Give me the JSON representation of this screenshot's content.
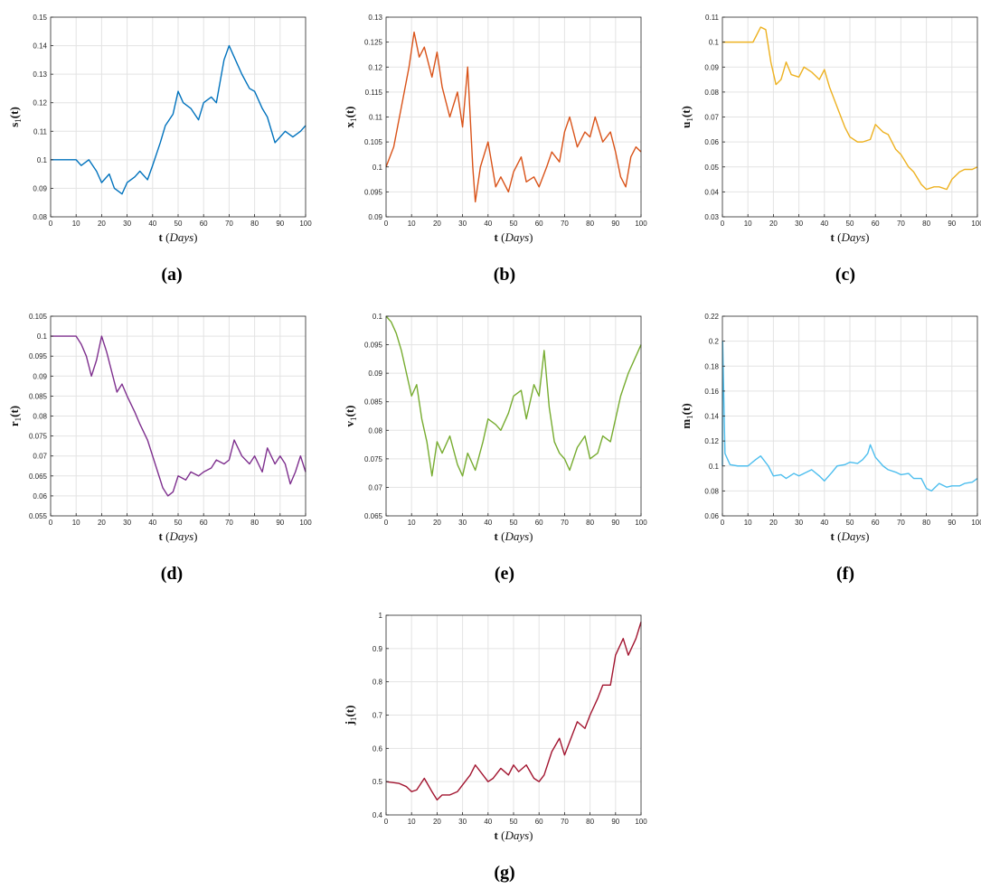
{
  "figure": {
    "charts": [
      {
        "caption": "(a)",
        "ylabel_base": "s",
        "xlabel_main": "t",
        "xlabel_paren": "Days",
        "color": "#0072BD"
      },
      {
        "caption": "(b)",
        "ylabel_base": "x",
        "xlabel_main": "t",
        "xlabel_paren": "Days",
        "color": "#D95319"
      },
      {
        "caption": "(c)",
        "ylabel_base": "u",
        "xlabel_main": "t",
        "xlabel_paren": "Days",
        "color": "#EDB120"
      },
      {
        "caption": "(d)",
        "ylabel_base": "r",
        "xlabel_main": "t",
        "xlabel_paren": "Days",
        "color": "#7E2F8E"
      },
      {
        "caption": "(e)",
        "ylabel_base": "v",
        "xlabel_main": "t",
        "xlabel_paren": "Days",
        "color": "#77AC30"
      },
      {
        "caption": "(f)",
        "ylabel_base": "m",
        "xlabel_main": "t",
        "xlabel_paren": "Days",
        "color": "#4DBEEE"
      },
      {
        "caption": "(g)",
        "ylabel_base": "j",
        "xlabel_main": "t",
        "xlabel_paren": "Days",
        "color": "#A2142F"
      }
    ]
  },
  "chart_data": [
    {
      "type": "line",
      "ylabel": "s1(t)",
      "xlabel": "t (Days)",
      "xlim": [
        0,
        100
      ],
      "ylim": [
        0.08,
        0.15
      ],
      "xticks": [
        0,
        10,
        20,
        30,
        40,
        50,
        60,
        70,
        80,
        90,
        100
      ],
      "yticks": [
        0.08,
        0.09,
        0.1,
        0.11,
        0.12,
        0.13,
        0.14,
        0.15
      ],
      "grid": true,
      "color": "#0072BD",
      "x": [
        0,
        10,
        12,
        15,
        18,
        20,
        23,
        25,
        28,
        30,
        33,
        35,
        38,
        40,
        43,
        45,
        48,
        50,
        52,
        55,
        58,
        60,
        63,
        65,
        68,
        70,
        72,
        75,
        78,
        80,
        83,
        85,
        88,
        90,
        92,
        95,
        98,
        100
      ],
      "y": [
        0.1,
        0.1,
        0.098,
        0.1,
        0.096,
        0.092,
        0.095,
        0.09,
        0.088,
        0.092,
        0.094,
        0.096,
        0.093,
        0.098,
        0.106,
        0.112,
        0.116,
        0.124,
        0.12,
        0.118,
        0.114,
        0.12,
        0.122,
        0.12,
        0.135,
        0.14,
        0.136,
        0.13,
        0.125,
        0.124,
        0.118,
        0.115,
        0.106,
        0.108,
        0.11,
        0.108,
        0.11,
        0.112
      ]
    },
    {
      "type": "line",
      "ylabel": "x1(t)",
      "xlabel": "t (Days)",
      "xlim": [
        0,
        100
      ],
      "ylim": [
        0.09,
        0.13
      ],
      "xticks": [
        0,
        10,
        20,
        30,
        40,
        50,
        60,
        70,
        80,
        90,
        100
      ],
      "yticks": [
        0.09,
        0.095,
        0.1,
        0.105,
        0.11,
        0.115,
        0.12,
        0.125,
        0.13
      ],
      "grid": true,
      "color": "#D95319",
      "x": [
        0,
        3,
        6,
        9,
        11,
        13,
        15,
        18,
        20,
        22,
        25,
        28,
        30,
        32,
        34,
        35,
        37,
        40,
        43,
        45,
        48,
        50,
        53,
        55,
        58,
        60,
        63,
        65,
        68,
        70,
        72,
        75,
        78,
        80,
        82,
        85,
        88,
        90,
        92,
        94,
        96,
        98,
        100
      ],
      "y": [
        0.1,
        0.104,
        0.112,
        0.12,
        0.127,
        0.122,
        0.124,
        0.118,
        0.123,
        0.116,
        0.11,
        0.115,
        0.108,
        0.12,
        0.1,
        0.093,
        0.1,
        0.105,
        0.096,
        0.098,
        0.095,
        0.099,
        0.102,
        0.097,
        0.098,
        0.096,
        0.1,
        0.103,
        0.101,
        0.107,
        0.11,
        0.104,
        0.107,
        0.106,
        0.11,
        0.105,
        0.107,
        0.103,
        0.098,
        0.096,
        0.102,
        0.104,
        0.103
      ]
    },
    {
      "type": "line",
      "ylabel": "u1(t)",
      "xlabel": "t (Days)",
      "xlim": [
        0,
        100
      ],
      "ylim": [
        0.03,
        0.11
      ],
      "xticks": [
        0,
        10,
        20,
        30,
        40,
        50,
        60,
        70,
        80,
        90,
        100
      ],
      "yticks": [
        0.03,
        0.04,
        0.05,
        0.06,
        0.07,
        0.08,
        0.09,
        0.1,
        0.11
      ],
      "grid": true,
      "color": "#EDB120",
      "x": [
        0,
        10,
        12,
        15,
        17,
        19,
        21,
        23,
        25,
        27,
        30,
        32,
        35,
        38,
        40,
        42,
        45,
        48,
        50,
        53,
        55,
        58,
        60,
        63,
        65,
        68,
        70,
        73,
        75,
        78,
        80,
        83,
        85,
        88,
        90,
        93,
        95,
        98,
        100
      ],
      "y": [
        0.1,
        0.1,
        0.1,
        0.106,
        0.105,
        0.092,
        0.083,
        0.085,
        0.092,
        0.087,
        0.086,
        0.09,
        0.088,
        0.085,
        0.089,
        0.082,
        0.074,
        0.066,
        0.062,
        0.06,
        0.06,
        0.061,
        0.067,
        0.064,
        0.063,
        0.057,
        0.055,
        0.05,
        0.048,
        0.043,
        0.041,
        0.042,
        0.042,
        0.041,
        0.045,
        0.048,
        0.049,
        0.049,
        0.05
      ]
    },
    {
      "type": "line",
      "ylabel": "r1(t)",
      "xlabel": "t (Days)",
      "xlim": [
        0,
        100
      ],
      "ylim": [
        0.055,
        0.105
      ],
      "xticks": [
        0,
        10,
        20,
        30,
        40,
        50,
        60,
        70,
        80,
        90,
        100
      ],
      "yticks": [
        0.055,
        0.06,
        0.065,
        0.07,
        0.075,
        0.08,
        0.085,
        0.09,
        0.095,
        0.1,
        0.105
      ],
      "grid": true,
      "color": "#7E2F8E",
      "x": [
        0,
        10,
        12,
        14,
        16,
        18,
        20,
        22,
        24,
        26,
        28,
        30,
        33,
        35,
        38,
        40,
        42,
        44,
        46,
        48,
        50,
        53,
        55,
        58,
        60,
        63,
        65,
        68,
        70,
        72,
        75,
        78,
        80,
        83,
        85,
        88,
        90,
        92,
        94,
        96,
        98,
        100
      ],
      "y": [
        0.1,
        0.1,
        0.098,
        0.095,
        0.09,
        0.094,
        0.1,
        0.096,
        0.091,
        0.086,
        0.088,
        0.085,
        0.081,
        0.078,
        0.074,
        0.07,
        0.066,
        0.062,
        0.06,
        0.061,
        0.065,
        0.064,
        0.066,
        0.065,
        0.066,
        0.067,
        0.069,
        0.068,
        0.069,
        0.074,
        0.07,
        0.068,
        0.07,
        0.066,
        0.072,
        0.068,
        0.07,
        0.068,
        0.063,
        0.066,
        0.07,
        0.066
      ]
    },
    {
      "type": "line",
      "ylabel": "v1(t)",
      "xlabel": "t (Days)",
      "xlim": [
        0,
        100
      ],
      "ylim": [
        0.065,
        0.1
      ],
      "xticks": [
        0,
        10,
        20,
        30,
        40,
        50,
        60,
        70,
        80,
        90,
        100
      ],
      "yticks": [
        0.065,
        0.07,
        0.075,
        0.08,
        0.085,
        0.09,
        0.095,
        0.1
      ],
      "grid": true,
      "color": "#77AC30",
      "x": [
        0,
        2,
        4,
        6,
        8,
        10,
        12,
        14,
        16,
        18,
        20,
        22,
        25,
        28,
        30,
        32,
        35,
        38,
        40,
        43,
        45,
        48,
        50,
        53,
        55,
        58,
        60,
        62,
        64,
        66,
        68,
        70,
        72,
        75,
        78,
        80,
        83,
        85,
        88,
        90,
        92,
        95,
        98,
        100
      ],
      "y": [
        0.1,
        0.099,
        0.097,
        0.094,
        0.09,
        0.086,
        0.088,
        0.082,
        0.078,
        0.072,
        0.078,
        0.076,
        0.079,
        0.074,
        0.072,
        0.076,
        0.073,
        0.078,
        0.082,
        0.081,
        0.08,
        0.083,
        0.086,
        0.087,
        0.082,
        0.088,
        0.086,
        0.094,
        0.084,
        0.078,
        0.076,
        0.075,
        0.073,
        0.077,
        0.079,
        0.075,
        0.076,
        0.079,
        0.078,
        0.082,
        0.086,
        0.09,
        0.093,
        0.095
      ]
    },
    {
      "type": "line",
      "ylabel": "m1(t)",
      "xlabel": "t (Days)",
      "xlim": [
        0,
        100
      ],
      "ylim": [
        0.06,
        0.22
      ],
      "xticks": [
        0,
        10,
        20,
        30,
        40,
        50,
        60,
        70,
        80,
        90,
        100
      ],
      "yticks": [
        0.06,
        0.08,
        0.1,
        0.12,
        0.14,
        0.16,
        0.18,
        0.2,
        0.22
      ],
      "grid": true,
      "color": "#4DBEEE",
      "x": [
        0,
        0.1,
        0.5,
        1,
        3,
        6,
        10,
        13,
        15,
        18,
        20,
        23,
        25,
        28,
        30,
        33,
        35,
        38,
        40,
        43,
        45,
        48,
        50,
        53,
        55,
        57,
        58,
        60,
        63,
        65,
        68,
        70,
        73,
        75,
        78,
        80,
        82,
        85,
        88,
        90,
        93,
        95,
        98,
        100
      ],
      "y": [
        0.1,
        0.2,
        0.16,
        0.11,
        0.101,
        0.1,
        0.1,
        0.105,
        0.108,
        0.1,
        0.092,
        0.093,
        0.09,
        0.094,
        0.092,
        0.095,
        0.097,
        0.092,
        0.088,
        0.095,
        0.1,
        0.101,
        0.103,
        0.102,
        0.105,
        0.11,
        0.117,
        0.107,
        0.1,
        0.097,
        0.095,
        0.093,
        0.094,
        0.09,
        0.09,
        0.082,
        0.08,
        0.086,
        0.083,
        0.084,
        0.084,
        0.086,
        0.087,
        0.09
      ]
    },
    {
      "type": "line",
      "ylabel": "j1(t)",
      "xlabel": "t (Days)",
      "xlim": [
        0,
        100
      ],
      "ylim": [
        0.4,
        1
      ],
      "xticks": [
        0,
        10,
        20,
        30,
        40,
        50,
        60,
        70,
        80,
        90,
        100
      ],
      "yticks": [
        0.4,
        0.5,
        0.6,
        0.7,
        0.8,
        0.9,
        1
      ],
      "grid": true,
      "color": "#A2142F",
      "x": [
        0,
        5,
        8,
        10,
        12,
        15,
        18,
        20,
        22,
        25,
        28,
        30,
        33,
        35,
        38,
        40,
        42,
        45,
        48,
        50,
        52,
        55,
        58,
        60,
        62,
        65,
        68,
        70,
        72,
        75,
        78,
        80,
        83,
        85,
        88,
        90,
        93,
        95,
        98,
        100
      ],
      "y": [
        0.5,
        0.495,
        0.485,
        0.47,
        0.475,
        0.51,
        0.47,
        0.445,
        0.46,
        0.46,
        0.47,
        0.49,
        0.52,
        0.55,
        0.52,
        0.5,
        0.51,
        0.54,
        0.52,
        0.55,
        0.53,
        0.55,
        0.51,
        0.5,
        0.52,
        0.59,
        0.63,
        0.58,
        0.62,
        0.68,
        0.66,
        0.7,
        0.75,
        0.79,
        0.79,
        0.88,
        0.93,
        0.88,
        0.93,
        0.98
      ]
    }
  ]
}
